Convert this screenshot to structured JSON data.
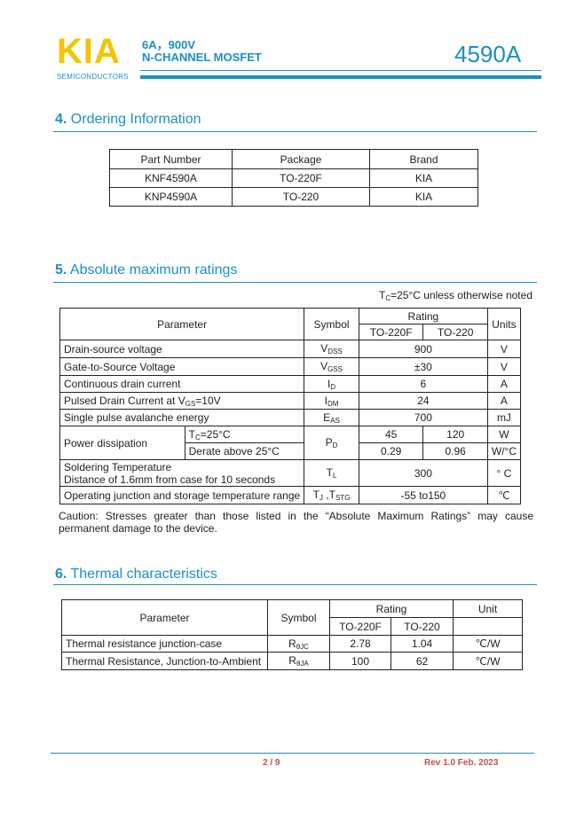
{
  "header": {
    "logo": "KIA",
    "logo_sub": "SEMICONDUCTORS",
    "line1": "6A，900V",
    "line2": "N-CHANNEL MOSFET",
    "part": "4590A"
  },
  "ordering": {
    "num": "4.",
    "title": "Ordering Information",
    "headers": [
      "Part Number",
      "Package",
      "Brand"
    ],
    "rows": [
      [
        "KNF4590A",
        "TO-220F",
        "KIA"
      ],
      [
        "KNP4590A",
        "TO-220",
        "KIA"
      ]
    ]
  },
  "absmax": {
    "num": "5.",
    "title": "Absolute maximum ratings",
    "note_main": "T",
    "note_sub": "C",
    "note_rest": "=25°C unless otherwise noted",
    "h_param": "Parameter",
    "h_symbol": "Symbol",
    "h_rating": "Rating",
    "h_units": "Units",
    "h_pkg1": "TO-220F",
    "h_pkg2": "TO-220",
    "rows": [
      {
        "param": "Drain-source voltage",
        "sym": "V",
        "sub": "DSS",
        "value": "900",
        "unit": "V"
      },
      {
        "param": "Gate-to-Source Voltage",
        "sym": "V",
        "sub": "GSS",
        "value": "±30",
        "unit": "V"
      },
      {
        "param": "Continuous drain current",
        "sym": "I",
        "sub": "D",
        "value": "6",
        "unit": "A"
      },
      {
        "param_a": "Pulsed Drain Current at V",
        "param_sub": "GS",
        "param_b": "=10V",
        "sym": "I",
        "sub": "DM",
        "value": "24",
        "unit": "A"
      },
      {
        "param": "Single pulse avalanche energy",
        "sym": "E",
        "sub": "AS",
        "value": "700",
        "unit": "mJ"
      }
    ],
    "power": {
      "param": "Power dissipation",
      "c1_a": "T",
      "c1_sub": "C",
      "c1_b": "=25°C",
      "c2": "Derate above 25°C",
      "sym": "P",
      "sub": "D",
      "v1": "45",
      "v2": "120",
      "u1": "W",
      "v3": "0.29",
      "v4": "0.96",
      "u2": "W/°C"
    },
    "solder": {
      "line1": "Soldering Temperature",
      "line2": "Distance of 1.6mm from case for 10 seconds",
      "sym": "T",
      "sub": "L",
      "value": "300",
      "unit": "° C"
    },
    "oper": {
      "param": "Operating junction and storage temperature range",
      "sym1": "T",
      "sub1": "J",
      "sym2": " ,T",
      "sub2": "STG",
      "value": "-55 to150",
      "unit": "℃"
    },
    "caution": "Caution: Stresses greater than those listed in the “Absolute Maximum Ratings” may cause permanent damage to the device."
  },
  "thermal": {
    "num": "6.",
    "title": "Thermal characteristics",
    "h_param": "Parameter",
    "h_symbol": "Symbol",
    "h_rating": "Rating",
    "h_unit": "Unit",
    "h_pkg1": "TO-220F",
    "h_pkg2": "TO-220",
    "rows": [
      {
        "param": "Thermal resistance junction-case",
        "sym": "R",
        "sub": "θJC",
        "v1": "2.78",
        "v2": "1.04",
        "unit": "℃/W"
      },
      {
        "param": "Thermal Resistance, Junction-to-Ambient",
        "sym": "R",
        "sub": "θJA",
        "v1": "100",
        "v2": "62",
        "unit": "℃/W"
      }
    ]
  },
  "footer": {
    "page": "2 / 9",
    "rev": "Rev 1.0 Feb. 2023"
  }
}
